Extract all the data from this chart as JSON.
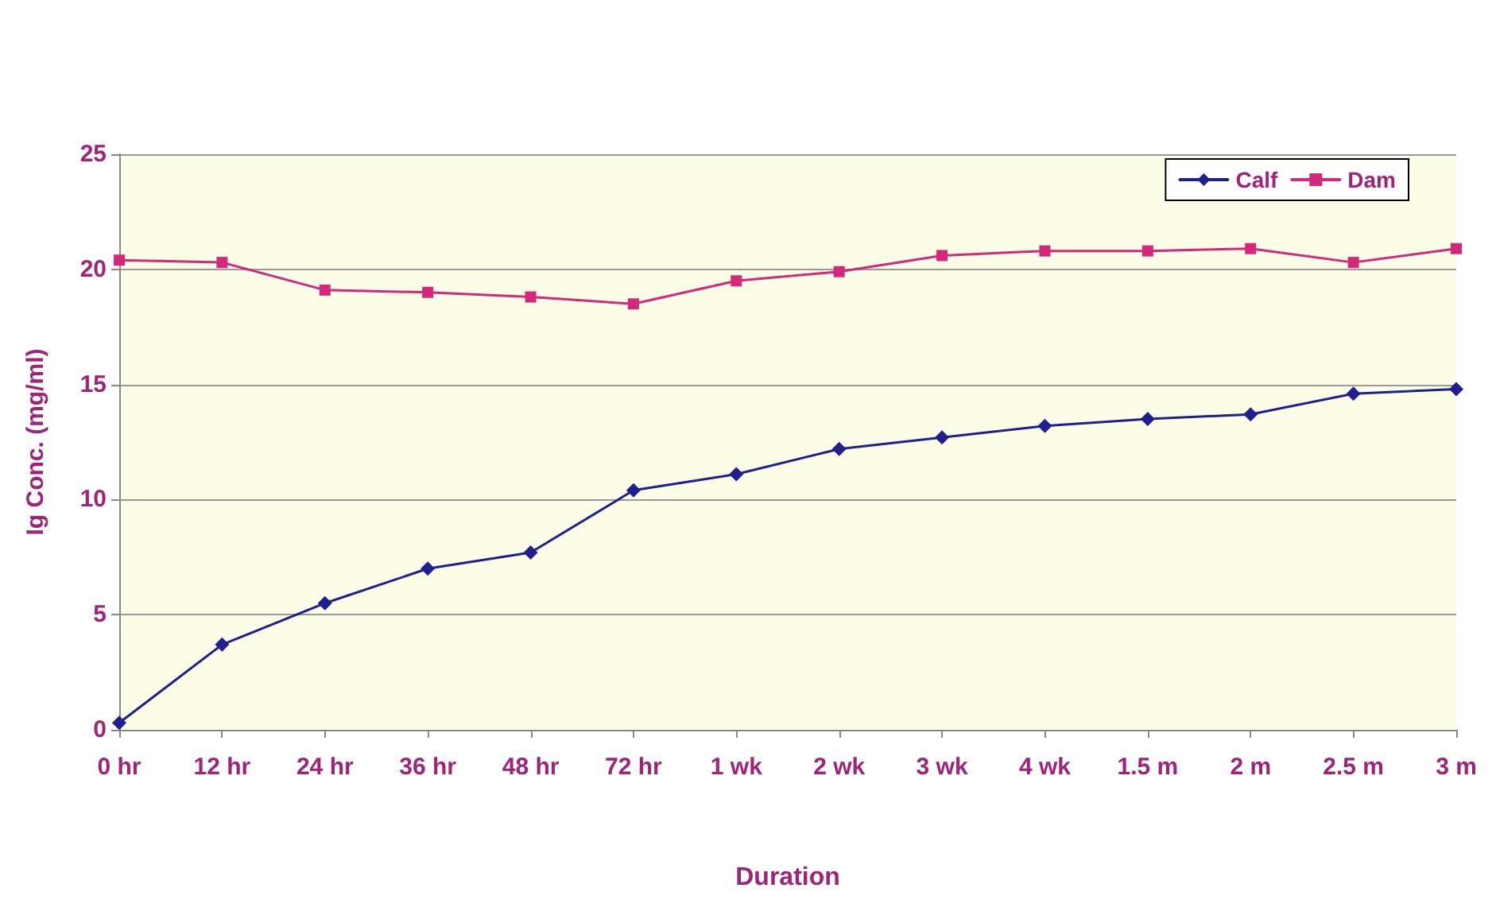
{
  "chart_data": {
    "type": "line",
    "xlabel": "Duration",
    "ylabel": "Ig Conc. (mg/ml)",
    "categories": [
      "0 hr",
      "12 hr",
      "24 hr",
      "36 hr",
      "48 hr",
      "72 hr",
      "1 wk",
      "2 wk",
      "3 wk",
      "4 wk",
      "1.5 m",
      "2 m",
      "2.5 m",
      "3 m"
    ],
    "series": [
      {
        "name": "Calf",
        "color": "#1f1f8f",
        "marker": "diamond",
        "values": [
          0.3,
          3.7,
          5.5,
          7.0,
          7.7,
          10.4,
          11.1,
          12.2,
          12.7,
          13.2,
          13.5,
          13.7,
          14.6,
          14.8
        ]
      },
      {
        "name": "Dam",
        "color": "#d6287a",
        "marker": "square",
        "values": [
          20.4,
          20.3,
          19.1,
          19.0,
          18.8,
          18.5,
          19.5,
          19.9,
          20.6,
          20.8,
          20.8,
          20.9,
          20.3,
          20.9
        ]
      }
    ],
    "ylim": [
      0,
      25
    ],
    "yticks": [
      0,
      5,
      10,
      15,
      20,
      25
    ],
    "grid": "y",
    "legend": "top right",
    "line_style": "solid"
  }
}
